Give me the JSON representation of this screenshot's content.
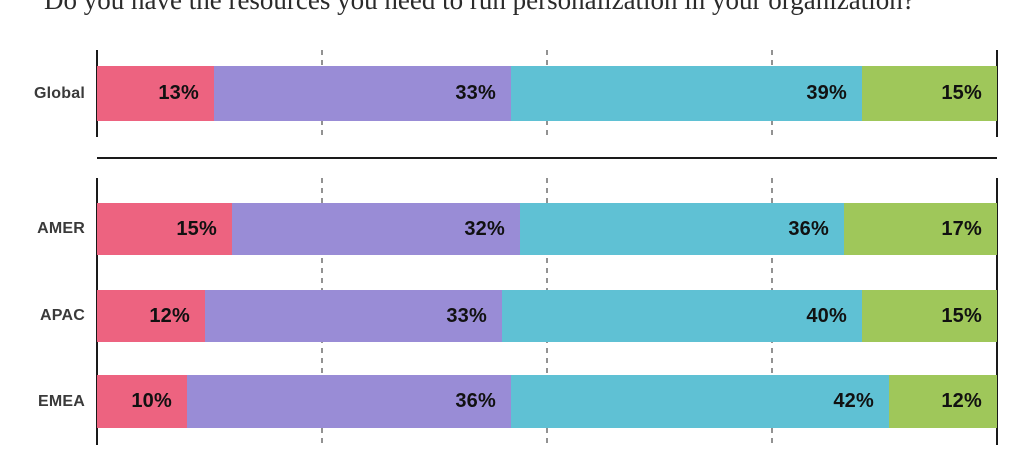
{
  "chart_data": {
    "type": "bar",
    "stacked": true,
    "orientation": "horizontal",
    "title": "Do you have the resources you need to run personalization in your organization?",
    "unit": "%",
    "xlim": [
      0,
      100
    ],
    "gridlines_pct": [
      0,
      25,
      50,
      75,
      100
    ],
    "grid_style": {
      "end_lines": "solid",
      "inner_lines": "dashed"
    },
    "segment_colors": [
      "#ED6380",
      "#998CD6",
      "#5FC1D4",
      "#9FC75A"
    ],
    "value_suffix": "%",
    "groups": [
      {
        "name": "global",
        "rows": [
          {
            "label": "Global",
            "values": [
              13,
              33,
              39,
              15
            ]
          }
        ]
      },
      {
        "name": "regions",
        "rows": [
          {
            "label": "AMER",
            "values": [
              15,
              32,
              36,
              17
            ]
          },
          {
            "label": "APAC",
            "values": [
              12,
              33,
              40,
              15
            ]
          },
          {
            "label": "EMEA",
            "values": [
              10,
              36,
              42,
              12
            ]
          }
        ]
      }
    ]
  }
}
